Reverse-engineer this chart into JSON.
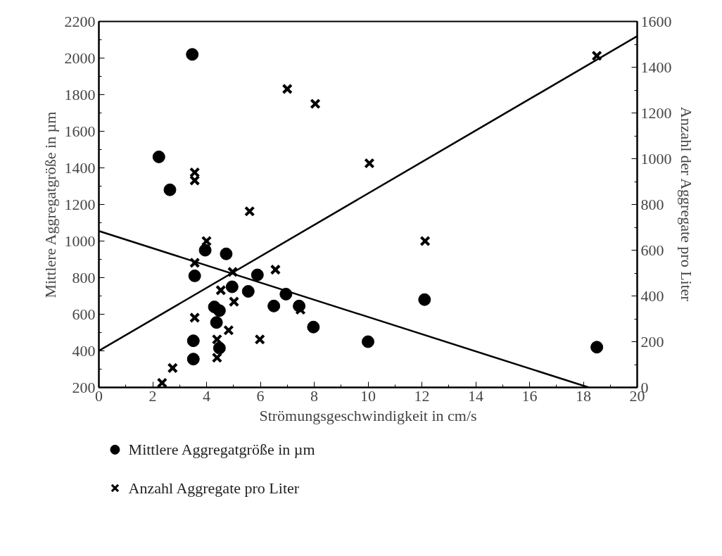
{
  "chart_data": {
    "type": "scatter",
    "xlabel": "Strömungsgeschwindigkeit in cm/s",
    "ylabel": "Mittlere Aggregatgröße in µm",
    "y2label": "Anzahl der Aggregate pro Liter",
    "xlim": [
      0,
      20
    ],
    "xticks": [
      0,
      2,
      4,
      6,
      8,
      10,
      12,
      14,
      16,
      18,
      20
    ],
    "ylim": [
      200,
      2200
    ],
    "yticks": [
      200,
      400,
      600,
      800,
      1000,
      1200,
      1400,
      1600,
      1800,
      2000,
      2200
    ],
    "y2lim": [
      0,
      1600
    ],
    "y2ticks": [
      0,
      200,
      400,
      600,
      800,
      1000,
      1200,
      1400,
      1600
    ],
    "grid": false,
    "legend": "bottom",
    "series": [
      {
        "name": "Mittlere Aggregatgröße in µm",
        "color": "#000000",
        "marker": "circle",
        "axis": "y",
        "x": [
          3.47,
          2.23,
          2.64,
          3.95,
          4.73,
          3.56,
          5.89,
          4.95,
          5.55,
          6.95,
          4.29,
          4.48,
          6.5,
          7.44,
          7.97,
          4.37,
          3.51,
          4.48,
          3.51,
          10.0,
          12.1,
          18.5
        ],
        "values": [
          2020,
          1460,
          1280,
          950,
          930,
          810,
          815,
          750,
          725,
          710,
          640,
          620,
          645,
          645,
          530,
          555,
          455,
          415,
          355,
          450,
          680,
          420
        ]
      },
      {
        "name": "Anzahl Aggregate pro Liter",
        "color": "#000000",
        "marker": "cross",
        "axis": "y2",
        "x": [
          7.0,
          8.04,
          10.05,
          3.56,
          3.56,
          5.6,
          4.0,
          3.56,
          3.56,
          4.97,
          6.56,
          4.53,
          5.02,
          7.49,
          3.56,
          4.82,
          5.98,
          4.39,
          4.39,
          2.74,
          2.35,
          12.12,
          18.5
        ],
        "values": [
          1305,
          1240,
          980,
          940,
          905,
          770,
          640,
          545,
          485,
          505,
          515,
          425,
          375,
          340,
          305,
          250,
          210,
          210,
          130,
          85,
          20,
          640,
          1450
        ]
      },
      {
        "type": "line",
        "color": "#000000",
        "axis": "y",
        "x": [
          0,
          18.2
        ],
        "values": [
          1055,
          200
        ]
      },
      {
        "type": "line",
        "color": "#000000",
        "axis": "y2",
        "x": [
          0,
          20
        ],
        "values": [
          160,
          1536
        ]
      }
    ]
  }
}
